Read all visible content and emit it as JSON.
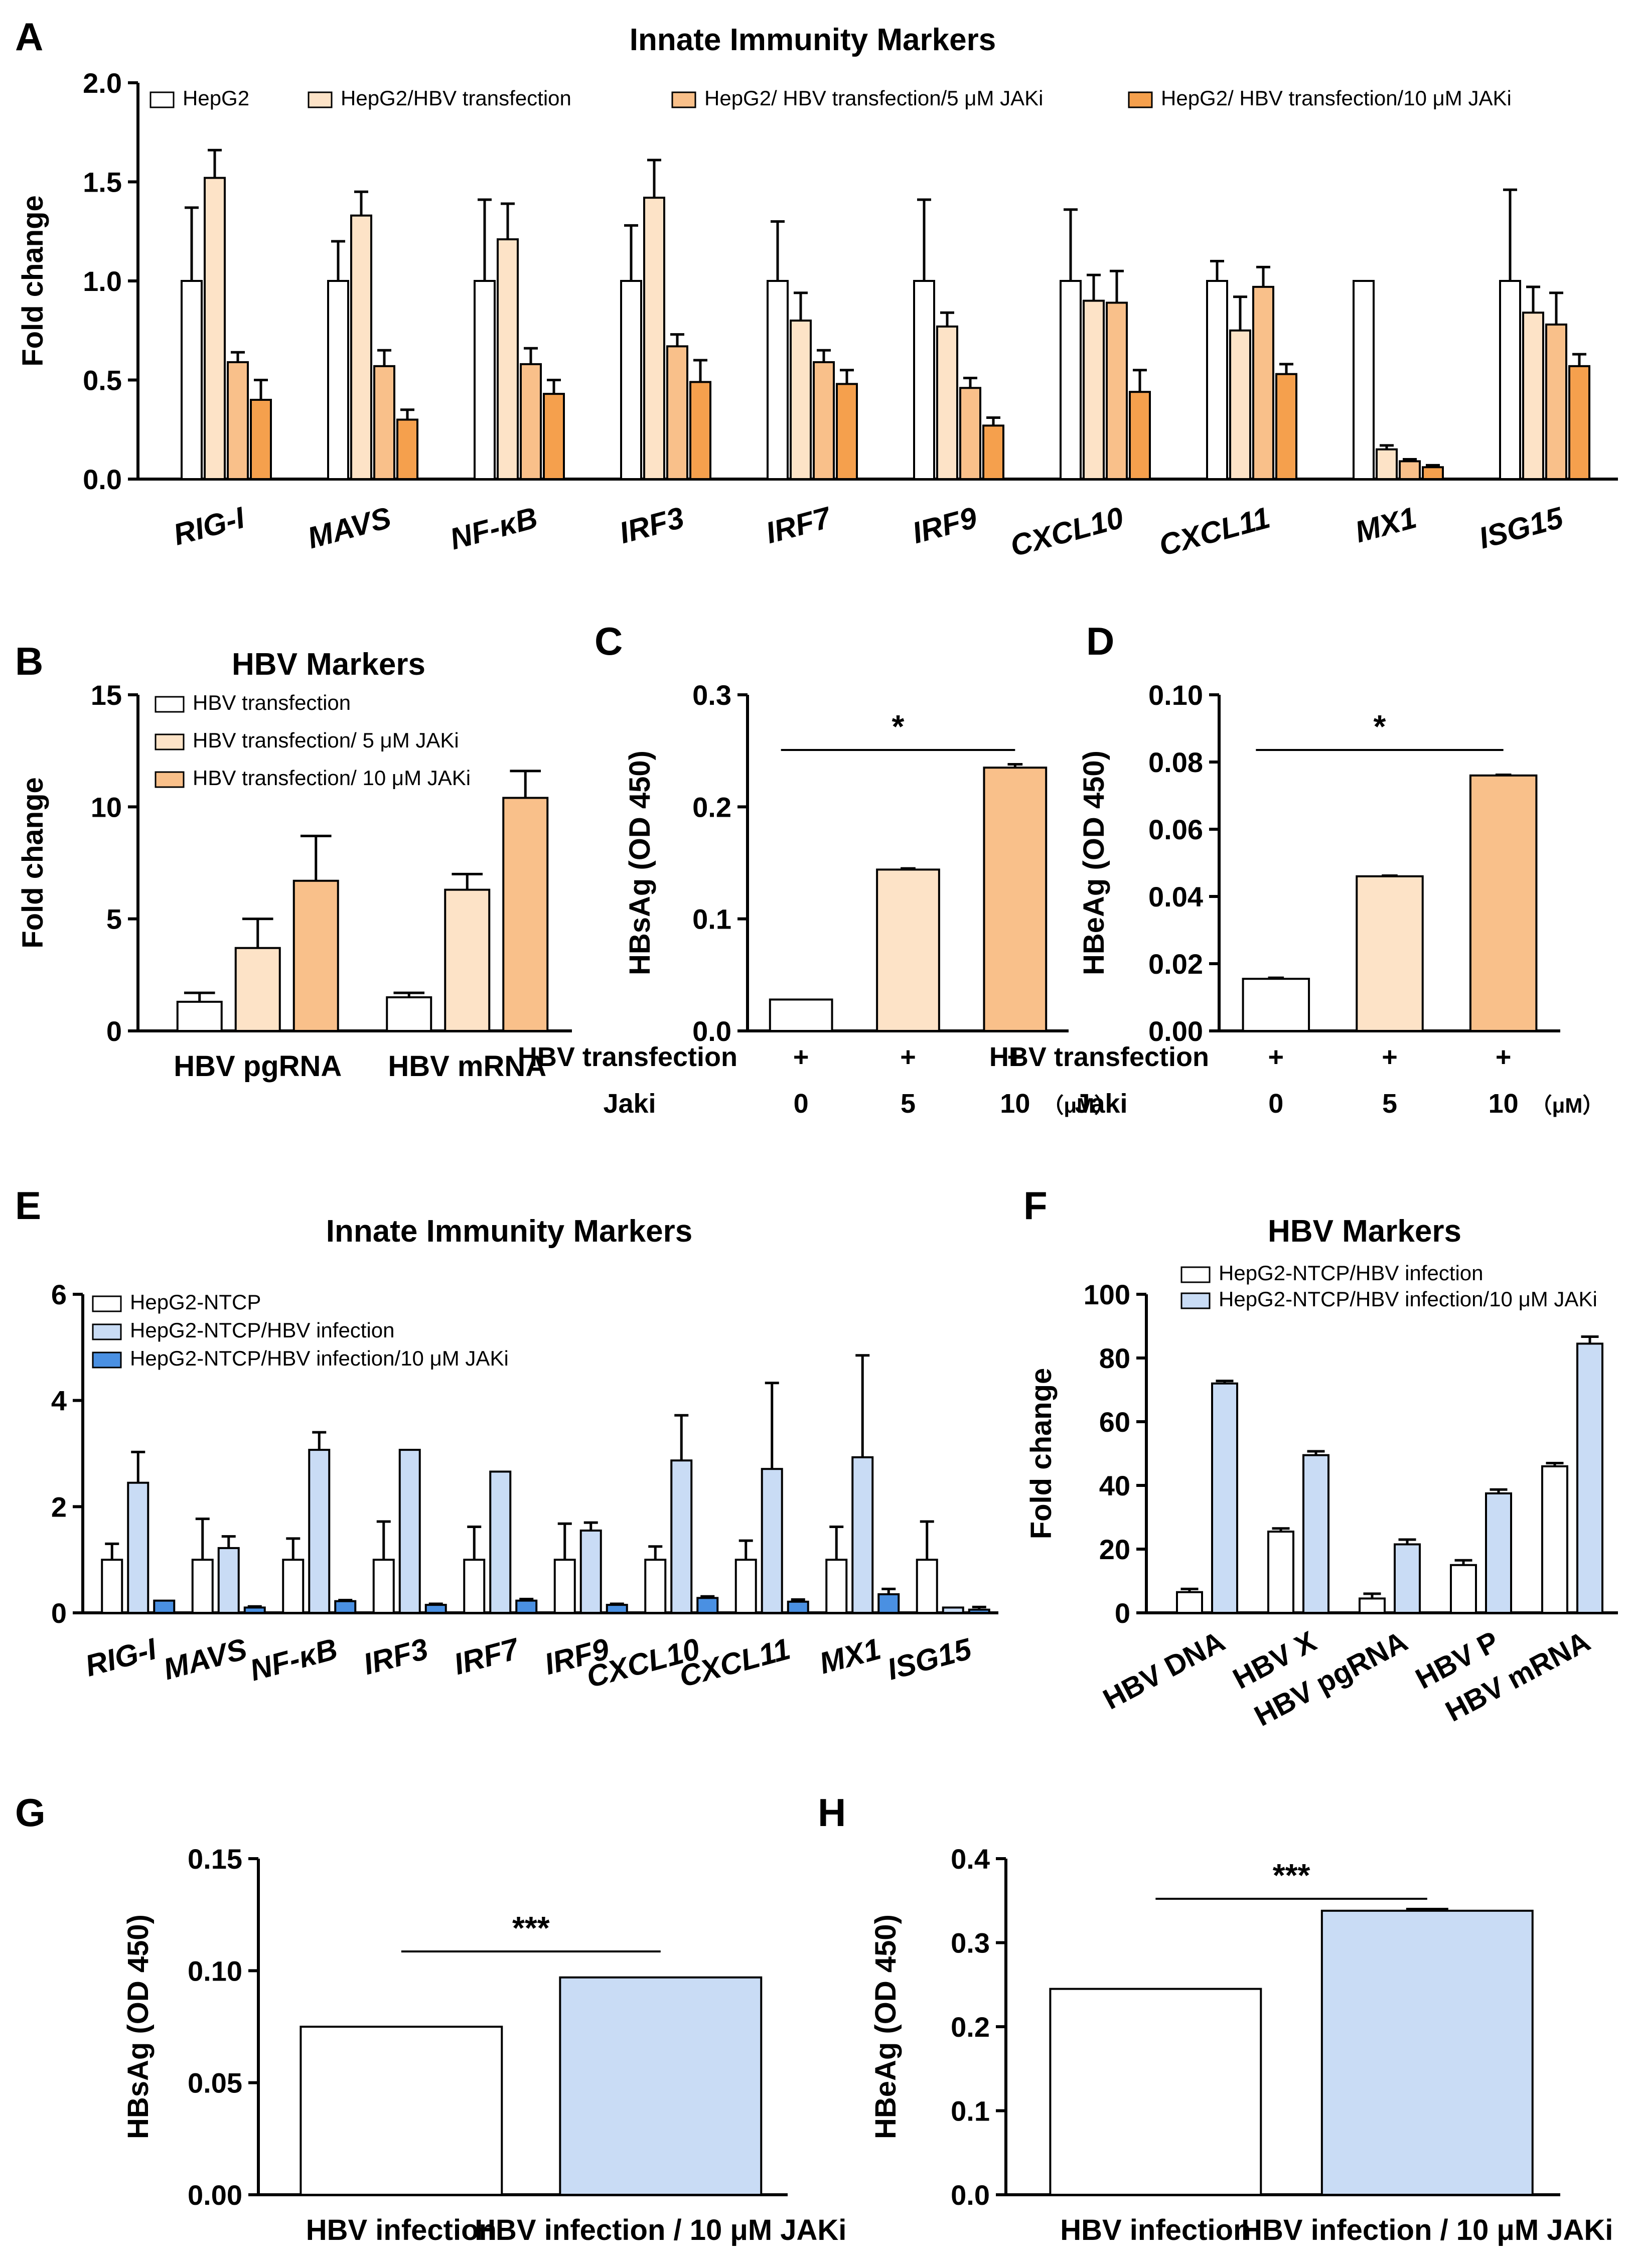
{
  "panels": {
    "A": {
      "label": "A"
    },
    "B": {
      "label": "B"
    },
    "C": {
      "label": "C"
    },
    "D": {
      "label": "D"
    },
    "E": {
      "label": "E"
    },
    "F": {
      "label": "F"
    },
    "G": {
      "label": "G"
    },
    "H": {
      "label": "H"
    }
  },
  "chart_data": [
    {
      "id": "A",
      "type": "bar",
      "title": "Innate Immunity Markers",
      "ylabel": "Fold change",
      "xlabel": "",
      "ylim": [
        0,
        2.0
      ],
      "yticks": [
        "0.0",
        "0.5",
        "1.0",
        "1.5",
        "2.0"
      ],
      "categories": [
        "RIG-I",
        "MAVS",
        "NF-κB",
        "IRF3",
        "IRF7",
        "IRF9",
        "CXCL10",
        "CXCL11",
        "MX1",
        "ISG15"
      ],
      "series": [
        {
          "name": "HepG2",
          "color": "#ffffff",
          "values": [
            1.0,
            1.0,
            1.0,
            1.0,
            1.0,
            1.0,
            1.0,
            1.0,
            1.0,
            1.0
          ],
          "errors": [
            0.37,
            0.2,
            0.41,
            0.28,
            0.3,
            0.41,
            0.36,
            0.1,
            0,
            0.46
          ]
        },
        {
          "name": "HepG2/HBV transfection",
          "color": "#fde3c7",
          "values": [
            1.52,
            1.33,
            1.21,
            1.42,
            0.8,
            0.77,
            0.9,
            0.75,
            0.15,
            0.84
          ],
          "errors": [
            0.14,
            0.12,
            0.18,
            0.19,
            0.14,
            0.07,
            0.13,
            0.17,
            0.02,
            0.13
          ]
        },
        {
          "name": "HepG2/ HBV transfection/5 μM JAKi",
          "color": "#f9c08a",
          "values": [
            0.59,
            0.57,
            0.58,
            0.67,
            0.59,
            0.46,
            0.89,
            0.97,
            0.09,
            0.78
          ],
          "errors": [
            0.05,
            0.08,
            0.08,
            0.06,
            0.06,
            0.05,
            0.16,
            0.1,
            0.01,
            0.16
          ]
        },
        {
          "name": "HepG2/ HBV transfection/10 μM JAKi",
          "color": "#f5a04d",
          "values": [
            0.4,
            0.3,
            0.43,
            0.49,
            0.48,
            0.27,
            0.44,
            0.53,
            0.06,
            0.57
          ],
          "errors": [
            0.1,
            0.05,
            0.07,
            0.11,
            0.07,
            0.04,
            0.11,
            0.05,
            0.01,
            0.06
          ]
        }
      ]
    },
    {
      "id": "B",
      "type": "bar",
      "title": "HBV Markers",
      "ylabel": "Fold change",
      "xlabel": "",
      "ylim": [
        0,
        15
      ],
      "yticks": [
        "0",
        "5",
        "10",
        "15"
      ],
      "categories": [
        "HBV pgRNA",
        "HBV mRNA"
      ],
      "series": [
        {
          "name": "HBV transfection",
          "color": "#ffffff",
          "values": [
            1.3,
            1.5
          ],
          "errors": [
            0.4,
            0.2
          ]
        },
        {
          "name": "HBV transfection/ 5 μM JAKi",
          "color": "#fde3c7",
          "values": [
            3.7,
            6.3
          ],
          "errors": [
            1.3,
            0.7
          ]
        },
        {
          "name": "HBV transfection/ 10 μM JAKi",
          "color": "#f9c08a",
          "values": [
            6.7,
            10.4
          ],
          "errors": [
            2.0,
            1.2
          ]
        }
      ]
    },
    {
      "id": "C",
      "type": "bar",
      "ylabel": "HBsAg (OD 450)",
      "ylim": [
        0,
        0.3
      ],
      "yticks": [
        "0.0",
        "0.1",
        "0.2",
        "0.3"
      ],
      "categories": [
        "0",
        "5",
        "10"
      ],
      "colors": [
        "#ffffff",
        "#fde3c7",
        "#f9c08a"
      ],
      "values": [
        0.028,
        0.144,
        0.235
      ],
      "errors": [
        0,
        0.001,
        0.003
      ],
      "row1_label": "HBV transfection",
      "row1_values": [
        "+",
        "+",
        "+"
      ],
      "row2_label": "Jaki",
      "unit": "（μM）",
      "significance": "*"
    },
    {
      "id": "D",
      "type": "bar",
      "ylabel": "HBeAg (OD 450)",
      "ylim": [
        0,
        0.1
      ],
      "yticks": [
        "0.00",
        "0.02",
        "0.04",
        "0.06",
        "0.08",
        "0.10"
      ],
      "categories": [
        "0",
        "5",
        "10"
      ],
      "colors": [
        "#ffffff",
        "#fde3c7",
        "#f9c08a"
      ],
      "values": [
        0.0155,
        0.046,
        0.076
      ],
      "errors": [
        0.0003,
        0.0002,
        0.0002
      ],
      "row1_label": "HBV transfection",
      "row1_values": [
        "+",
        "+",
        "+"
      ],
      "row2_label": "Jaki",
      "unit": "（μM）",
      "significance": "*"
    },
    {
      "id": "E",
      "type": "bar",
      "title": "Innate Immunity Markers",
      "ylabel": "Fold change",
      "ylim": [
        0,
        6
      ],
      "yticks": [
        "0",
        "2",
        "4",
        "6"
      ],
      "categories": [
        "RIG-I",
        "MAVS",
        "NF-κB",
        "IRF3",
        "IRF7",
        "IRF9",
        "CXCL10",
        "CXCL11",
        "MX1",
        "ISG15"
      ],
      "series": [
        {
          "name": "HepG2-NTCP",
          "color": "#ffffff",
          "values": [
            1.0,
            1.0,
            1.0,
            1.0,
            1.0,
            1.0,
            1.0,
            1.0,
            1.0,
            1.0
          ],
          "errors": [
            0.3,
            0.77,
            0.4,
            0.72,
            0.62,
            0.68,
            0.25,
            0.36,
            0.62,
            0.72
          ]
        },
        {
          "name": "HepG2-NTCP/HBV infection",
          "color": "#c9dcf5",
          "values": [
            2.45,
            1.22,
            3.07,
            3.07,
            2.66,
            1.55,
            2.87,
            2.71,
            2.93,
            0.1
          ],
          "errors": [
            0.58,
            0.22,
            0.33,
            0,
            0,
            0.15,
            0.85,
            1.62,
            1.92,
            0
          ]
        },
        {
          "name": "HepG2-NTCP/HBV infection/10 μM JAKi",
          "color": "#4a90e2",
          "values": [
            0.23,
            0.1,
            0.22,
            0.15,
            0.23,
            0.15,
            0.28,
            0.21,
            0.35,
            0.06
          ],
          "errors": [
            0,
            0.02,
            0.02,
            0.02,
            0.03,
            0.02,
            0.03,
            0.04,
            0.1,
            0.05
          ]
        }
      ]
    },
    {
      "id": "F",
      "type": "bar",
      "title": "HBV Markers",
      "ylabel": "Fold change",
      "ylim": [
        0,
        100
      ],
      "yticks": [
        "0",
        "20",
        "40",
        "60",
        "80",
        "100"
      ],
      "categories": [
        "HBV DNA",
        "HBV X",
        "HBV pgRNA",
        "HBV P",
        "HBV mRNA"
      ],
      "series": [
        {
          "name": "HepG2-NTCP/HBV infection",
          "color": "#ffffff",
          "values": [
            6.5,
            25.5,
            4.5,
            15,
            46
          ],
          "errors": [
            1.0,
            1.0,
            1.5,
            1.5,
            1.0
          ]
        },
        {
          "name": "HepG2-NTCP/HBV infection/10 μM JAKi",
          "color": "#c9dcf5",
          "values": [
            72,
            49.5,
            21.5,
            37.5,
            84.5
          ],
          "errors": [
            0.8,
            1.2,
            1.5,
            1.2,
            2.2
          ]
        }
      ]
    },
    {
      "id": "G",
      "type": "bar",
      "ylabel": "HBsAg (OD 450)",
      "ylim": [
        0,
        0.15
      ],
      "yticks": [
        "0.00",
        "0.05",
        "0.10",
        "0.15"
      ],
      "categories": [
        "HBV infection",
        "HBV infection / 10 μM JAKi"
      ],
      "colors": [
        "#ffffff",
        "#c9dcf5"
      ],
      "values": [
        0.075,
        0.097
      ],
      "errors": [
        0,
        0
      ],
      "significance": "***"
    },
    {
      "id": "H",
      "type": "bar",
      "ylabel": "HBeAg (OD 450)",
      "ylim": [
        0,
        0.4
      ],
      "yticks": [
        "0.0",
        "0.1",
        "0.2",
        "0.3",
        "0.4"
      ],
      "categories": [
        "HBV infection",
        "HBV infection / 10 μM JAKi"
      ],
      "colors": [
        "#ffffff",
        "#c9dcf5"
      ],
      "values": [
        0.245,
        0.338
      ],
      "errors": [
        0,
        0.002
      ],
      "significance": "***"
    }
  ]
}
